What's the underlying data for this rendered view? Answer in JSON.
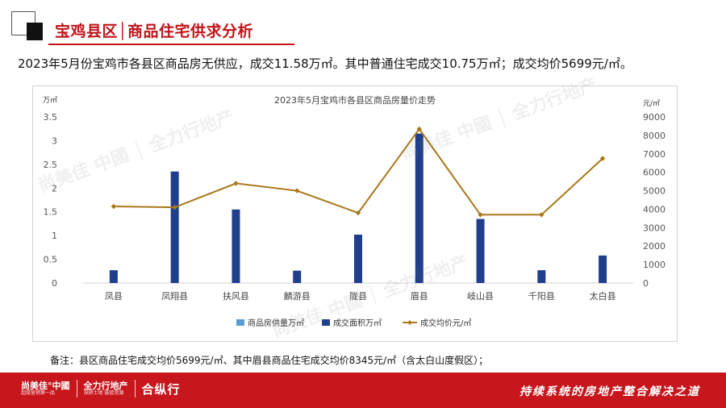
{
  "header": {
    "title": "宝鸡县区│商品住宅供求分析"
  },
  "summary_text": "2023年5月份宝鸡市各县区商品房无供应，成交11.58万㎡。其中普通住宅成交10.75万㎡；成交均价5699元/㎡。",
  "chart_data": {
    "type": "bar",
    "title": "2023年5月宝鸡市各县区商品房量价走势",
    "categories": [
      "凤县",
      "凤翔县",
      "扶风县",
      "麟游县",
      "陇县",
      "眉县",
      "岐山县",
      "千阳县",
      "太白县"
    ],
    "y_left_unit": "万㎡",
    "y_right_unit": "元/㎡",
    "y_left_range": [
      0,
      3.5
    ],
    "y_left_ticks": [
      "0",
      "0.5",
      "1",
      "1.5",
      "2",
      "2.5",
      "3",
      "3.5"
    ],
    "y_right_range": [
      0,
      9000
    ],
    "y_right_ticks": [
      "0",
      "1000",
      "2000",
      "3000",
      "4000",
      "5000",
      "6000",
      "7000",
      "8000",
      "9000"
    ],
    "grid": false,
    "legend_position": "bottom",
    "series": [
      {
        "name": "商品房供量万㎡",
        "kind": "bar",
        "axis": "left",
        "color": "#5b9bd5",
        "values": [
          0,
          0,
          0,
          0,
          0,
          0,
          0,
          0,
          0
        ]
      },
      {
        "name": "成交面积万㎡",
        "kind": "bar",
        "axis": "left",
        "color": "#1f3f8c",
        "values": [
          0.27,
          2.35,
          1.55,
          0.26,
          1.02,
          3.15,
          1.35,
          0.27,
          0.58
        ]
      },
      {
        "name": "成交均价元/㎡",
        "kind": "line",
        "axis": "right",
        "color": "#a9781b",
        "values": [
          4150,
          4100,
          5400,
          5000,
          3800,
          8345,
          3700,
          3700,
          6750
        ]
      }
    ]
  },
  "note": "备注：县区商品住宅成交均价5699元/㎡、其中眉县商品住宅成交均价8345元/㎡（含太白山度假区）；",
  "footer": {
    "brand_1": "尚美佳°中國",
    "brand_1_sub": "超级营销第一品",
    "brand_2": "全力行地产",
    "brand_2_sub": "深耕土地 链接资源",
    "brand_3": "合纵行",
    "slogan": "持续系统的房地产整合解决之道"
  }
}
